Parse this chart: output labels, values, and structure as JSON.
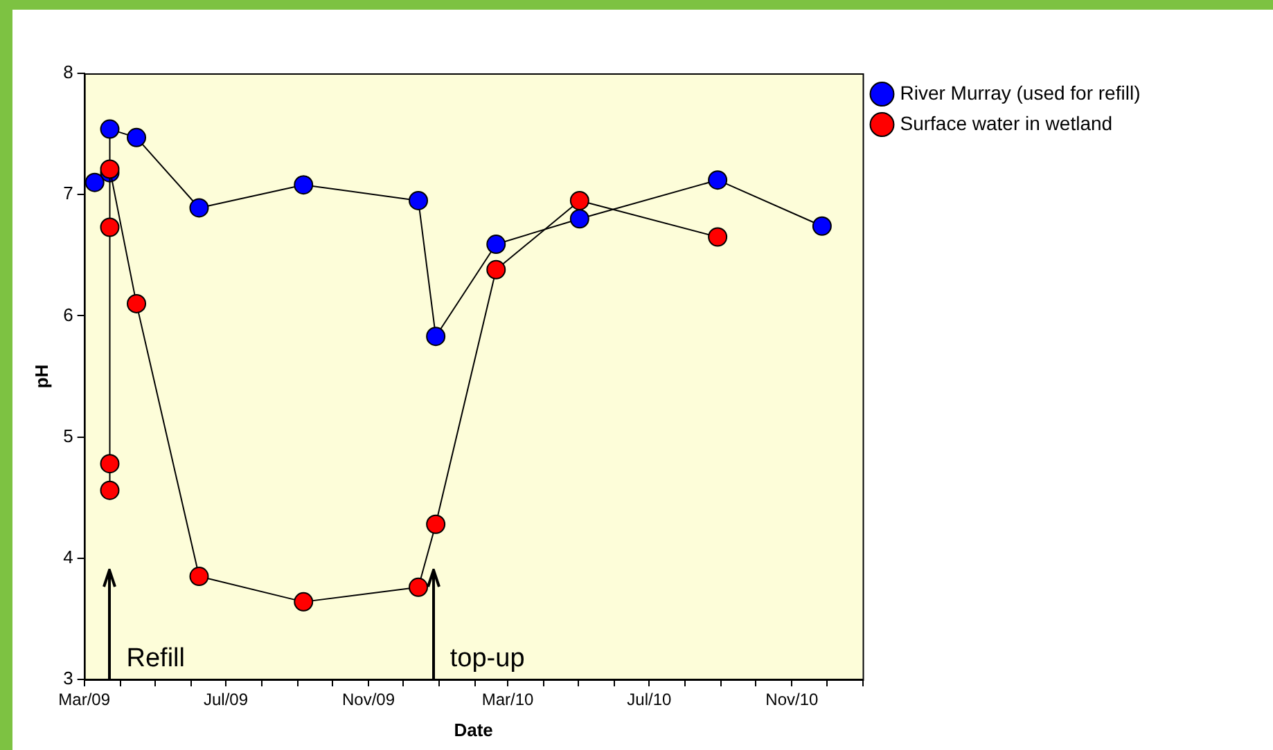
{
  "chart_data": {
    "type": "line",
    "xlabel": "Date",
    "ylabel": "pH",
    "xlim": [
      "2009-03-01",
      "2011-01-01"
    ],
    "ylim": [
      3,
      8
    ],
    "yticks": [
      3,
      4,
      5,
      6,
      7,
      8
    ],
    "xticks": [
      {
        "value": "2009-03",
        "label": "Mar/09"
      },
      {
        "value": "2009-04",
        "label": null
      },
      {
        "value": "2009-05",
        "label": null
      },
      {
        "value": "2009-06",
        "label": null
      },
      {
        "value": "2009-07",
        "label": "Jul/09"
      },
      {
        "value": "2009-08",
        "label": null
      },
      {
        "value": "2009-09",
        "label": null
      },
      {
        "value": "2009-10",
        "label": null
      },
      {
        "value": "2009-11",
        "label": "Nov/09"
      },
      {
        "value": "2009-12",
        "label": null
      },
      {
        "value": "2010-01",
        "label": null
      },
      {
        "value": "2010-02",
        "label": null
      },
      {
        "value": "2010-03",
        "label": "Mar/10"
      },
      {
        "value": "2010-04",
        "label": null
      },
      {
        "value": "2010-05",
        "label": null
      },
      {
        "value": "2010-06",
        "label": null
      },
      {
        "value": "2010-07",
        "label": "Jul/10"
      },
      {
        "value": "2010-08",
        "label": null
      },
      {
        "value": "2010-09",
        "label": null
      },
      {
        "value": "2010-10",
        "label": null
      },
      {
        "value": "2010-11",
        "label": "Nov/10"
      },
      {
        "value": "2010-12",
        "label": null
      },
      {
        "value": "2011-01",
        "label": null
      }
    ],
    "grid": false,
    "legend": "top right",
    "marker": "circle",
    "line_style": "solid",
    "series": [
      {
        "name": "River Murray (used for refill)",
        "color": "#0000ff",
        "x": [
          "2009-03-10",
          "2009-03-23",
          "2009-03-23",
          "2009-04-15",
          "2009-06-08",
          "2009-09-06",
          "2009-12-14",
          "2009-12-29",
          "2010-02-19",
          "2010-05-02",
          "2010-08-29",
          "2010-11-27"
        ],
        "values": [
          7.1,
          7.18,
          7.54,
          7.47,
          6.89,
          7.08,
          6.95,
          5.83,
          6.59,
          6.8,
          7.12,
          6.74
        ]
      },
      {
        "name": "Surface water in wetland",
        "color": "#ff0000",
        "x": [
          "2009-03-23",
          "2009-03-23",
          "2009-03-23",
          "2009-03-23",
          "2009-04-15",
          "2009-06-08",
          "2009-09-06",
          "2009-12-14",
          "2009-12-29",
          "2010-02-19",
          "2010-05-02",
          "2010-08-29"
        ],
        "values": [
          4.56,
          4.78,
          6.73,
          7.21,
          6.1,
          3.85,
          3.64,
          3.76,
          4.28,
          6.38,
          6.95,
          6.65
        ]
      }
    ],
    "ref_lines": [
      {
        "axis": "x",
        "value": "2009-03-23",
        "label": "Refill"
      },
      {
        "axis": "x",
        "value": "2009-12-27",
        "label": "top-up"
      }
    ]
  }
}
